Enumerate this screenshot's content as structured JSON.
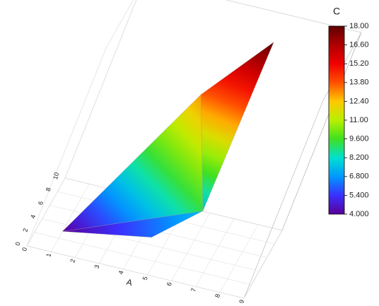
{
  "chart_data": {
    "type": "surface3d",
    "x_label": "A",
    "colorbar_title": "C",
    "x": [
      1,
      4.5,
      6,
      4,
      6
    ],
    "y": [
      3,
      2,
      3,
      7,
      6
    ],
    "z": [
      4,
      5.5,
      7.5,
      13,
      18
    ],
    "triangles": [
      [
        0,
        1,
        2
      ],
      [
        0,
        2,
        3
      ],
      [
        2,
        4,
        3
      ]
    ],
    "xlim": [
      0,
      9
    ],
    "xticks": [
      0,
      1,
      2,
      3,
      4,
      5,
      6,
      7,
      8,
      9
    ],
    "ylim": [
      0,
      10
    ],
    "yticks": [
      0,
      2,
      4,
      6,
      8,
      10
    ],
    "zlim": [
      4,
      18
    ],
    "clim": [
      4,
      18
    ],
    "cticks": [
      {
        "value": 4,
        "label": "4.000"
      },
      {
        "value": 5.4,
        "label": "5.400"
      },
      {
        "value": 6.8,
        "label": "6.800"
      },
      {
        "value": 8.2,
        "label": "8.200"
      },
      {
        "value": 9.6,
        "label": "9.600"
      },
      {
        "value": 11,
        "label": "11.00"
      },
      {
        "value": 12.4,
        "label": "12.40"
      },
      {
        "value": 13.8,
        "label": "13.80"
      },
      {
        "value": 15.2,
        "label": "15.20"
      },
      {
        "value": 16.6,
        "label": "16.60"
      },
      {
        "value": 18,
        "label": "18.00"
      }
    ],
    "colormap": [
      "#5a0098",
      "#3a30ff",
      "#0098ff",
      "#00e0d0",
      "#40e020",
      "#b8f000",
      "#ffc800",
      "#ff5000",
      "#f00000",
      "#b00000",
      "#600000"
    ],
    "grid": true
  }
}
